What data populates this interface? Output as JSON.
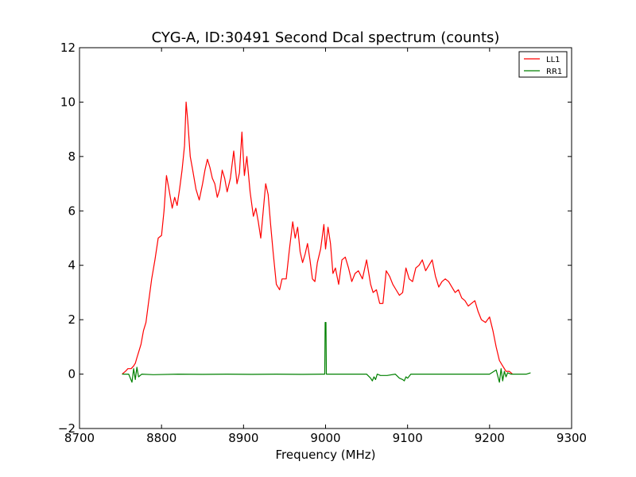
{
  "chart_data": {
    "type": "line",
    "title": "CYG-A, ID:30491 Second Dcal spectrum (counts)",
    "xlabel": "Frequency (MHz)",
    "ylabel": "",
    "xlim": [
      8700,
      9300
    ],
    "ylim": [
      -2,
      12
    ],
    "xticks": [
      8700,
      8800,
      8900,
      9000,
      9100,
      9200,
      9300
    ],
    "yticks": [
      -2,
      0,
      2,
      4,
      6,
      8,
      10,
      12
    ],
    "xtick_labels": [
      "8700",
      "8800",
      "8900",
      "9000",
      "9100",
      "9200",
      "9300"
    ],
    "ytick_labels": [
      "−2",
      "0",
      "2",
      "4",
      "6",
      "8",
      "10",
      "12"
    ],
    "grid": false,
    "legend": "top-right",
    "series": [
      {
        "name": "LL1",
        "color": "#ff0000",
        "x": [
          8752,
          8756,
          8759,
          8763,
          8766,
          8768,
          8770,
          8772,
          8775,
          8778,
          8781,
          8784,
          8788,
          8792,
          8796,
          8800,
          8803,
          8806,
          8809,
          8813,
          8816,
          8819,
          8822,
          8825,
          8828,
          8830,
          8832,
          8835,
          8838,
          8842,
          8846,
          8850,
          8853,
          8856,
          8859,
          8862,
          8865,
          8868,
          8871,
          8874,
          8877,
          8880,
          8884,
          8888,
          8892,
          8895,
          8898,
          8901,
          8904,
          8908,
          8912,
          8915,
          8918,
          8921,
          8924,
          8927,
          8930,
          8933,
          8936,
          8940,
          8944,
          8947,
          8952,
          8956,
          8960,
          8963,
          8966,
          8969,
          8972,
          8975,
          8978,
          8981,
          8984,
          8987,
          8990,
          8994,
          8998,
          9000,
          9003,
          9006,
          9009,
          9012,
          9016,
          9020,
          9024,
          9028,
          9032,
          9036,
          9040,
          9045,
          9050,
          9055,
          9058,
          9062,
          9066,
          9070,
          9074,
          9078,
          9082,
          9086,
          9090,
          9094,
          9098,
          9102,
          9106,
          9110,
          9114,
          9118,
          9122,
          9126,
          9130,
          9134,
          9138,
          9142,
          9146,
          9150,
          9154,
          9158,
          9162,
          9166,
          9170,
          9174,
          9178,
          9182,
          9186,
          9190,
          9195,
          9200,
          9204,
          9208,
          9212,
          9216,
          9220,
          9224,
          9228
        ],
        "y": [
          0.0,
          0.1,
          0.2,
          0.2,
          0.3,
          0.4,
          0.6,
          0.8,
          1.1,
          1.6,
          1.9,
          2.6,
          3.5,
          4.2,
          5.0,
          5.1,
          6.0,
          7.3,
          6.8,
          6.1,
          6.5,
          6.2,
          6.8,
          7.5,
          8.4,
          10.0,
          9.3,
          8.0,
          7.5,
          6.8,
          6.4,
          7.0,
          7.5,
          7.9,
          7.6,
          7.2,
          7.0,
          6.5,
          6.8,
          7.5,
          7.2,
          6.7,
          7.2,
          8.2,
          7.0,
          7.4,
          8.9,
          7.3,
          8.0,
          6.7,
          5.8,
          6.1,
          5.6,
          5.0,
          6.0,
          7.0,
          6.6,
          5.5,
          4.5,
          3.3,
          3.1,
          3.5,
          3.5,
          4.6,
          5.6,
          5.0,
          5.4,
          4.5,
          4.1,
          4.4,
          4.8,
          4.2,
          3.5,
          3.4,
          4.1,
          4.6,
          5.5,
          4.6,
          5.4,
          4.8,
          3.7,
          3.9,
          3.3,
          4.2,
          4.3,
          3.9,
          3.4,
          3.7,
          3.8,
          3.5,
          4.2,
          3.3,
          3.0,
          3.1,
          2.6,
          2.6,
          3.8,
          3.6,
          3.3,
          3.1,
          2.9,
          3.0,
          3.9,
          3.5,
          3.4,
          3.9,
          4.0,
          4.2,
          3.8,
          4.0,
          4.2,
          3.6,
          3.2,
          3.4,
          3.5,
          3.4,
          3.2,
          3.0,
          3.1,
          2.8,
          2.7,
          2.5,
          2.6,
          2.7,
          2.3,
          2.0,
          1.9,
          2.1,
          1.6,
          1.0,
          0.5,
          0.3,
          0.1,
          0.1,
          0.0
        ]
      },
      {
        "name": "RR1",
        "color": "#008000",
        "x": [
          8752,
          8760,
          8764,
          8766,
          8768,
          8770,
          8772,
          8776,
          8790,
          8820,
          8850,
          8880,
          8910,
          8940,
          8970,
          8995,
          8999,
          8999.5,
          9000.5,
          9001,
          9005,
          9030,
          9050,
          9055,
          9057,
          9059,
          9061,
          9063,
          9067,
          9075,
          9085,
          9090,
          9094,
          9096,
          9098,
          9100,
          9104,
          9120,
          9150,
          9180,
          9200,
          9208,
          9212,
          9214,
          9216,
          9218,
          9220,
          9222,
          9226,
          9235,
          9245,
          9250
        ],
        "y": [
          0.0,
          0.0,
          -0.3,
          0.2,
          -0.2,
          0.25,
          -0.1,
          0.0,
          -0.02,
          0.0,
          -0.01,
          0.0,
          -0.01,
          0.0,
          -0.01,
          0.0,
          0.0,
          1.9,
          1.9,
          0.0,
          0.0,
          0.0,
          0.0,
          -0.15,
          -0.25,
          -0.1,
          -0.2,
          0.0,
          -0.05,
          -0.05,
          0.0,
          -0.15,
          -0.2,
          -0.25,
          -0.1,
          -0.15,
          0.0,
          0.0,
          0.0,
          0.0,
          0.0,
          0.15,
          -0.3,
          0.2,
          -0.25,
          0.1,
          -0.1,
          0.05,
          0.0,
          0.0,
          0.0,
          0.05
        ]
      }
    ]
  }
}
